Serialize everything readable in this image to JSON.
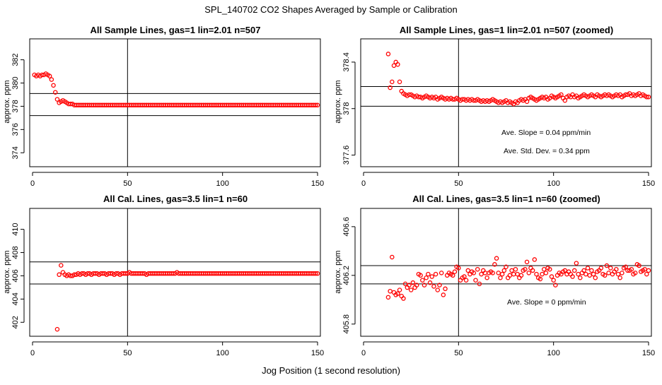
{
  "figure": {
    "title": "SPL_140702  CO2 Shapes Averaged by Sample or Calibration",
    "xlabel": "Jog Position (1 second resolution)"
  },
  "chart_data": [
    {
      "type": "scatter",
      "title": "All Sample Lines, gas=1 lin=2.01 n=507",
      "ylabel": "approx. ppm",
      "xlim": [
        0,
        150
      ],
      "ylim": [
        372.8,
        383.8
      ],
      "xticks": [
        0,
        50,
        100,
        150
      ],
      "yticks": [
        374,
        376,
        378,
        380,
        382
      ],
      "ref_lines_y": [
        379.1,
        377.2
      ],
      "ref_line_x": 50,
      "color": "#ff0000",
      "x": [
        1,
        2,
        3,
        4,
        5,
        6,
        7,
        8,
        9,
        10,
        11,
        12,
        13,
        14,
        15,
        16,
        17,
        18,
        19,
        20,
        21,
        22,
        23,
        24,
        25,
        26,
        27,
        28,
        29,
        30,
        31,
        32,
        33,
        34,
        35,
        36,
        37,
        38,
        39,
        40,
        41,
        42,
        43,
        44,
        45,
        46,
        47,
        48,
        49,
        50,
        51,
        52,
        53,
        54,
        55,
        56,
        57,
        58,
        59,
        60,
        61,
        62,
        63,
        64,
        65,
        66,
        67,
        68,
        69,
        70,
        71,
        72,
        73,
        74,
        75,
        76,
        77,
        78,
        79,
        80,
        81,
        82,
        83,
        84,
        85,
        86,
        87,
        88,
        89,
        90,
        91,
        92,
        93,
        94,
        95,
        96,
        97,
        98,
        99,
        100,
        101,
        102,
        103,
        104,
        105,
        106,
        107,
        108,
        109,
        110,
        111,
        112,
        113,
        114,
        115,
        116,
        117,
        118,
        119,
        120,
        121,
        122,
        123,
        124,
        125,
        126,
        127,
        128,
        129,
        130,
        131,
        132,
        133,
        134,
        135,
        136,
        137,
        138,
        139,
        140,
        141,
        142,
        143,
        144,
        145,
        146,
        147,
        148,
        149,
        150
      ],
      "y": [
        380.7,
        380.6,
        380.7,
        380.6,
        380.7,
        380.7,
        380.8,
        380.7,
        380.6,
        380.3,
        379.8,
        379.2,
        378.6,
        378.3,
        378.4,
        378.5,
        378.4,
        378.3,
        378.2,
        378.2,
        378.2,
        378.1,
        378.1,
        378.1,
        378.1,
        378.1,
        378.1,
        378.1,
        378.1,
        378.1,
        378.1,
        378.1,
        378.1,
        378.1,
        378.1,
        378.1,
        378.1,
        378.1,
        378.1,
        378.1,
        378.1,
        378.1,
        378.1,
        378.1,
        378.1,
        378.1,
        378.1,
        378.1,
        378.1,
        378.1,
        378.1,
        378.1,
        378.1,
        378.1,
        378.1,
        378.1,
        378.1,
        378.1,
        378.1,
        378.1,
        378.1,
        378.1,
        378.1,
        378.1,
        378.1,
        378.1,
        378.1,
        378.1,
        378.1,
        378.1,
        378.1,
        378.1,
        378.1,
        378.1,
        378.1,
        378.1,
        378.1,
        378.1,
        378.1,
        378.1,
        378.1,
        378.1,
        378.1,
        378.1,
        378.1,
        378.1,
        378.1,
        378.1,
        378.1,
        378.1,
        378.1,
        378.1,
        378.1,
        378.1,
        378.1,
        378.1,
        378.1,
        378.1,
        378.1,
        378.1,
        378.1,
        378.1,
        378.1,
        378.1,
        378.1,
        378.1,
        378.1,
        378.1,
        378.1,
        378.1,
        378.1,
        378.1,
        378.1,
        378.1,
        378.1,
        378.1,
        378.1,
        378.1,
        378.1,
        378.1,
        378.1,
        378.1,
        378.1,
        378.1,
        378.1,
        378.1,
        378.1,
        378.1,
        378.1,
        378.1,
        378.1,
        378.1,
        378.1,
        378.1,
        378.1,
        378.1,
        378.1,
        378.1,
        378.1,
        378.1,
        378.1,
        378.1,
        378.1,
        378.1,
        378.1,
        378.1,
        378.1,
        378.1,
        378.1,
        378.1
      ]
    },
    {
      "type": "scatter",
      "title": "All Sample Lines, gas=1 lin=2.01 n=507 (zoomed)",
      "ylabel": "approx. ppm",
      "xlim": [
        0,
        150
      ],
      "ylim": [
        377.5,
        378.6
      ],
      "xticks": [
        0,
        50,
        100,
        150
      ],
      "yticks": [
        377.6,
        378.0,
        378.4
      ],
      "ref_lines_y": [
        378.19,
        378.02
      ],
      "ref_line_x": 50,
      "color": "#ff0000",
      "annotations": [
        "Ave. Slope =  0.04  ppm/min",
        "Ave. Std. Dev. =  0.34  ppm"
      ],
      "x": [
        13,
        14,
        15,
        16,
        17,
        18,
        19,
        20,
        21,
        22,
        23,
        24,
        25,
        26,
        27,
        28,
        29,
        30,
        31,
        32,
        33,
        34,
        35,
        36,
        37,
        38,
        39,
        40,
        41,
        42,
        43,
        44,
        45,
        46,
        47,
        48,
        49,
        50,
        51,
        52,
        53,
        54,
        55,
        56,
        57,
        58,
        59,
        60,
        61,
        62,
        63,
        64,
        65,
        66,
        67,
        68,
        69,
        70,
        71,
        72,
        73,
        74,
        75,
        76,
        77,
        78,
        79,
        80,
        81,
        82,
        83,
        84,
        85,
        86,
        87,
        88,
        89,
        90,
        91,
        92,
        93,
        94,
        95,
        96,
        97,
        98,
        99,
        100,
        101,
        102,
        103,
        104,
        105,
        106,
        107,
        108,
        109,
        110,
        111,
        112,
        113,
        114,
        115,
        116,
        117,
        118,
        119,
        120,
        121,
        122,
        123,
        124,
        125,
        126,
        127,
        128,
        129,
        130,
        131,
        132,
        133,
        134,
        135,
        136,
        137,
        138,
        139,
        140,
        141,
        142,
        143,
        144,
        145,
        146,
        147,
        148,
        149,
        150
      ],
      "y": [
        378.47,
        378.18,
        378.23,
        378.37,
        378.4,
        378.38,
        378.23,
        378.15,
        378.13,
        378.12,
        378.11,
        378.12,
        378.12,
        378.11,
        378.1,
        378.11,
        378.1,
        378.1,
        378.09,
        378.1,
        378.11,
        378.1,
        378.09,
        378.1,
        378.09,
        378.1,
        378.08,
        378.09,
        378.1,
        378.09,
        378.08,
        378.09,
        378.08,
        378.09,
        378.08,
        378.08,
        378.09,
        378.08,
        378.07,
        378.08,
        378.08,
        378.07,
        378.08,
        378.07,
        378.08,
        378.07,
        378.07,
        378.08,
        378.07,
        378.06,
        378.07,
        378.06,
        378.07,
        378.06,
        378.07,
        378.08,
        378.07,
        378.06,
        378.05,
        378.06,
        378.05,
        378.06,
        378.07,
        378.05,
        378.06,
        378.05,
        378.04,
        378.06,
        378.05,
        378.07,
        378.08,
        378.07,
        378.08,
        378.06,
        378.09,
        378.1,
        378.09,
        378.08,
        378.07,
        378.08,
        378.09,
        378.1,
        378.09,
        378.1,
        378.08,
        378.09,
        378.11,
        378.1,
        378.09,
        378.1,
        378.11,
        378.12,
        378.09,
        378.07,
        378.1,
        378.11,
        378.1,
        378.12,
        378.1,
        378.11,
        378.09,
        378.1,
        378.11,
        378.12,
        378.11,
        378.1,
        378.11,
        378.12,
        378.11,
        378.1,
        378.12,
        378.11,
        378.1,
        378.11,
        378.12,
        378.11,
        378.12,
        378.11,
        378.1,
        378.11,
        378.12,
        378.11,
        378.12,
        378.1,
        378.11,
        378.12,
        378.12,
        378.13,
        378.11,
        378.12,
        378.11,
        378.12,
        378.13,
        378.11,
        378.12,
        378.11,
        378.1,
        378.1
      ]
    },
    {
      "type": "scatter",
      "title": "All Cal. Lines, gas=3.5 lin=1 n=60",
      "ylabel": "approx. ppm",
      "xlim": [
        0,
        150
      ],
      "ylim": [
        400.8,
        411.8
      ],
      "xticks": [
        0,
        50,
        100,
        150
      ],
      "yticks": [
        402,
        404,
        406,
        408,
        410
      ],
      "ref_lines_y": [
        407.2,
        405.3
      ],
      "ref_line_x": 50,
      "color": "#ff0000",
      "x": [
        13,
        14,
        15,
        16,
        17,
        18,
        19,
        20,
        21,
        22,
        23,
        24,
        25,
        26,
        27,
        28,
        29,
        30,
        31,
        32,
        33,
        34,
        35,
        36,
        37,
        38,
        39,
        40,
        41,
        42,
        43,
        44,
        45,
        46,
        47,
        48,
        49,
        50,
        51,
        52,
        53,
        54,
        55,
        56,
        57,
        58,
        59,
        60,
        61,
        62,
        63,
        64,
        65,
        66,
        67,
        68,
        69,
        70,
        71,
        72,
        73,
        74,
        75,
        76,
        77,
        78,
        79,
        80,
        81,
        82,
        83,
        84,
        85,
        86,
        87,
        88,
        89,
        90,
        91,
        92,
        93,
        94,
        95,
        96,
        97,
        98,
        99,
        100,
        101,
        102,
        103,
        104,
        105,
        106,
        107,
        108,
        109,
        110,
        111,
        112,
        113,
        114,
        115,
        116,
        117,
        118,
        119,
        120,
        121,
        122,
        123,
        124,
        125,
        126,
        127,
        128,
        129,
        130,
        131,
        132,
        133,
        134,
        135,
        136,
        137,
        138,
        139,
        140,
        141,
        142,
        143,
        144,
        145,
        146,
        147,
        148,
        149,
        150
      ],
      "y": [
        401.4,
        406.1,
        406.9,
        406.3,
        406.1,
        406.0,
        406.1,
        406.0,
        406.0,
        406.1,
        406.1,
        406.2,
        406.1,
        406.2,
        406.2,
        406.1,
        406.2,
        406.2,
        406.1,
        406.2,
        406.2,
        406.2,
        406.1,
        406.2,
        406.2,
        406.2,
        406.1,
        406.2,
        406.2,
        406.2,
        406.1,
        406.2,
        406.2,
        406.1,
        406.2,
        406.2,
        406.2,
        406.2,
        406.3,
        406.2,
        406.2,
        406.2,
        406.2,
        406.2,
        406.2,
        406.2,
        406.2,
        406.1,
        406.2,
        406.2,
        406.2,
        406.2,
        406.2,
        406.2,
        406.2,
        406.2,
        406.2,
        406.2,
        406.2,
        406.2,
        406.2,
        406.2,
        406.2,
        406.3,
        406.2,
        406.2,
        406.2,
        406.2,
        406.2,
        406.2,
        406.2,
        406.2,
        406.2,
        406.2,
        406.2,
        406.2,
        406.2,
        406.2,
        406.2,
        406.2,
        406.2,
        406.2,
        406.2,
        406.2,
        406.2,
        406.2,
        406.2,
        406.2,
        406.2,
        406.2,
        406.2,
        406.2,
        406.2,
        406.2,
        406.2,
        406.2,
        406.2,
        406.2,
        406.2,
        406.2,
        406.2,
        406.2,
        406.2,
        406.2,
        406.2,
        406.2,
        406.2,
        406.2,
        406.2,
        406.2,
        406.2,
        406.2,
        406.2,
        406.2,
        406.2,
        406.2,
        406.2,
        406.2,
        406.2,
        406.2,
        406.2,
        406.2,
        406.2,
        406.2,
        406.2,
        406.2,
        406.2,
        406.2,
        406.2,
        406.2,
        406.2,
        406.2,
        406.2,
        406.2,
        406.2,
        406.2,
        406.2,
        406.2
      ]
    },
    {
      "type": "scatter",
      "title": "All Cal. Lines, gas=3.5 lin=1 n=60 (zoomed)",
      "ylabel": "approx. ppm",
      "xlim": [
        0,
        150
      ],
      "ylim": [
        405.7,
        406.75
      ],
      "xticks": [
        0,
        50,
        100,
        150
      ],
      "yticks": [
        405.8,
        406.2,
        406.6
      ],
      "ref_lines_y": [
        406.28,
        406.13
      ],
      "ref_line_x": 50,
      "color": "#ff0000",
      "annotations": [
        "Ave. Slope =  0  ppm/min"
      ],
      "x": [
        13,
        14,
        15,
        16,
        17,
        18,
        19,
        20,
        21,
        22,
        23,
        24,
        25,
        26,
        27,
        28,
        29,
        30,
        31,
        32,
        33,
        34,
        35,
        36,
        37,
        38,
        39,
        40,
        41,
        42,
        43,
        44,
        45,
        46,
        47,
        48,
        49,
        50,
        51,
        52,
        53,
        54,
        55,
        56,
        57,
        58,
        59,
        60,
        61,
        62,
        63,
        64,
        65,
        66,
        67,
        68,
        69,
        70,
        71,
        72,
        73,
        74,
        75,
        76,
        77,
        78,
        79,
        80,
        81,
        82,
        83,
        84,
        85,
        86,
        87,
        88,
        89,
        90,
        91,
        92,
        93,
        94,
        95,
        96,
        97,
        98,
        99,
        100,
        101,
        102,
        103,
        104,
        105,
        106,
        107,
        108,
        109,
        110,
        111,
        112,
        113,
        114,
        115,
        116,
        117,
        118,
        119,
        120,
        121,
        122,
        123,
        124,
        125,
        126,
        127,
        128,
        129,
        130,
        131,
        132,
        133,
        134,
        135,
        136,
        137,
        138,
        139,
        140,
        141,
        142,
        143,
        144,
        145,
        146,
        147,
        148,
        149,
        150
      ],
      "y": [
        406.02,
        406.07,
        406.35,
        406.06,
        406.04,
        406.05,
        406.08,
        406.03,
        406.01,
        406.13,
        406.1,
        406.12,
        406.08,
        406.14,
        406.1,
        406.12,
        406.21,
        406.2,
        406.16,
        406.12,
        406.18,
        406.21,
        406.14,
        406.19,
        406.11,
        406.21,
        406.08,
        406.12,
        406.22,
        406.04,
        406.09,
        406.2,
        406.22,
        406.21,
        406.2,
        406.23,
        406.27,
        406.26,
        406.16,
        406.18,
        406.19,
        406.16,
        406.24,
        406.21,
        406.23,
        406.22,
        406.16,
        406.25,
        406.13,
        406.21,
        406.24,
        406.22,
        406.18,
        406.22,
        406.23,
        406.22,
        406.29,
        406.34,
        406.22,
        406.18,
        406.21,
        406.24,
        406.27,
        406.18,
        406.2,
        406.24,
        406.21,
        406.25,
        406.21,
        406.18,
        406.2,
        406.24,
        406.25,
        406.31,
        406.22,
        406.26,
        406.24,
        406.33,
        406.21,
        406.18,
        406.17,
        406.21,
        406.25,
        406.22,
        406.26,
        406.25,
        406.19,
        406.16,
        406.12,
        406.2,
        406.22,
        406.21,
        406.23,
        406.24,
        406.21,
        406.23,
        406.21,
        406.19,
        406.24,
        406.3,
        406.21,
        406.18,
        406.22,
        406.24,
        406.21,
        406.26,
        406.2,
        406.24,
        406.21,
        406.18,
        406.23,
        406.24,
        406.26,
        406.21,
        406.2,
        406.28,
        406.22,
        406.26,
        406.21,
        406.23,
        406.25,
        406.21,
        406.18,
        406.22,
        406.26,
        406.27,
        406.24,
        406.24,
        406.25,
        406.21,
        406.22,
        406.29,
        406.28,
        406.23,
        406.24,
        406.25,
        406.21,
        406.24
      ]
    }
  ]
}
